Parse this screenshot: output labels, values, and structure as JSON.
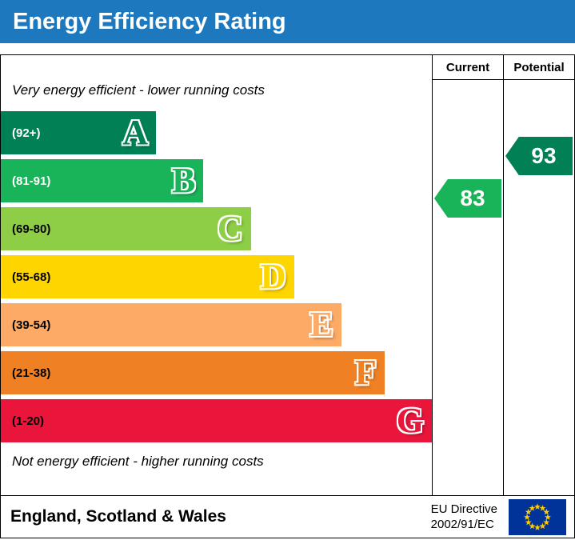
{
  "header": {
    "title": "Energy Efficiency Rating"
  },
  "colors": {
    "header_bg": "#1e78be",
    "header_text": "#ffffff",
    "border": "#000000",
    "flag_bg": "#003399",
    "flag_star": "#ffcc00"
  },
  "chart_data": {
    "type": "bar",
    "title": "Energy Efficiency Rating",
    "top_annotation": "Very energy efficient - lower running costs",
    "bottom_annotation": "Not energy efficient - higher running costs",
    "bands": [
      {
        "letter": "A",
        "range": "(92+)",
        "color": "#008054",
        "width_pct": 36,
        "range_text_color": "#ffffff"
      },
      {
        "letter": "B",
        "range": "(81-91)",
        "color": "#19b459",
        "width_pct": 47,
        "range_text_color": "#ffffff"
      },
      {
        "letter": "C",
        "range": "(69-80)",
        "color": "#8dce46",
        "width_pct": 58,
        "range_text_color": "#000000"
      },
      {
        "letter": "D",
        "range": "(55-68)",
        "color": "#ffd500",
        "width_pct": 68,
        "range_text_color": "#000000"
      },
      {
        "letter": "E",
        "range": "(39-54)",
        "color": "#fcaa65",
        "width_pct": 79,
        "range_text_color": "#000000"
      },
      {
        "letter": "F",
        "range": "(21-38)",
        "color": "#ef8023",
        "width_pct": 89,
        "range_text_color": "#000000"
      },
      {
        "letter": "G",
        "range": "(1-20)",
        "color": "#e9153b",
        "width_pct": 100,
        "range_text_color": "#000000"
      }
    ],
    "current": {
      "label": "Current",
      "value": 83,
      "band": "B",
      "color": "#19b459"
    },
    "potential": {
      "label": "Potential",
      "value": 93,
      "band": "A",
      "color": "#008054"
    }
  },
  "footer": {
    "region": "England, Scotland & Wales",
    "directive_line1": "EU Directive",
    "directive_line2": "2002/91/EC"
  }
}
